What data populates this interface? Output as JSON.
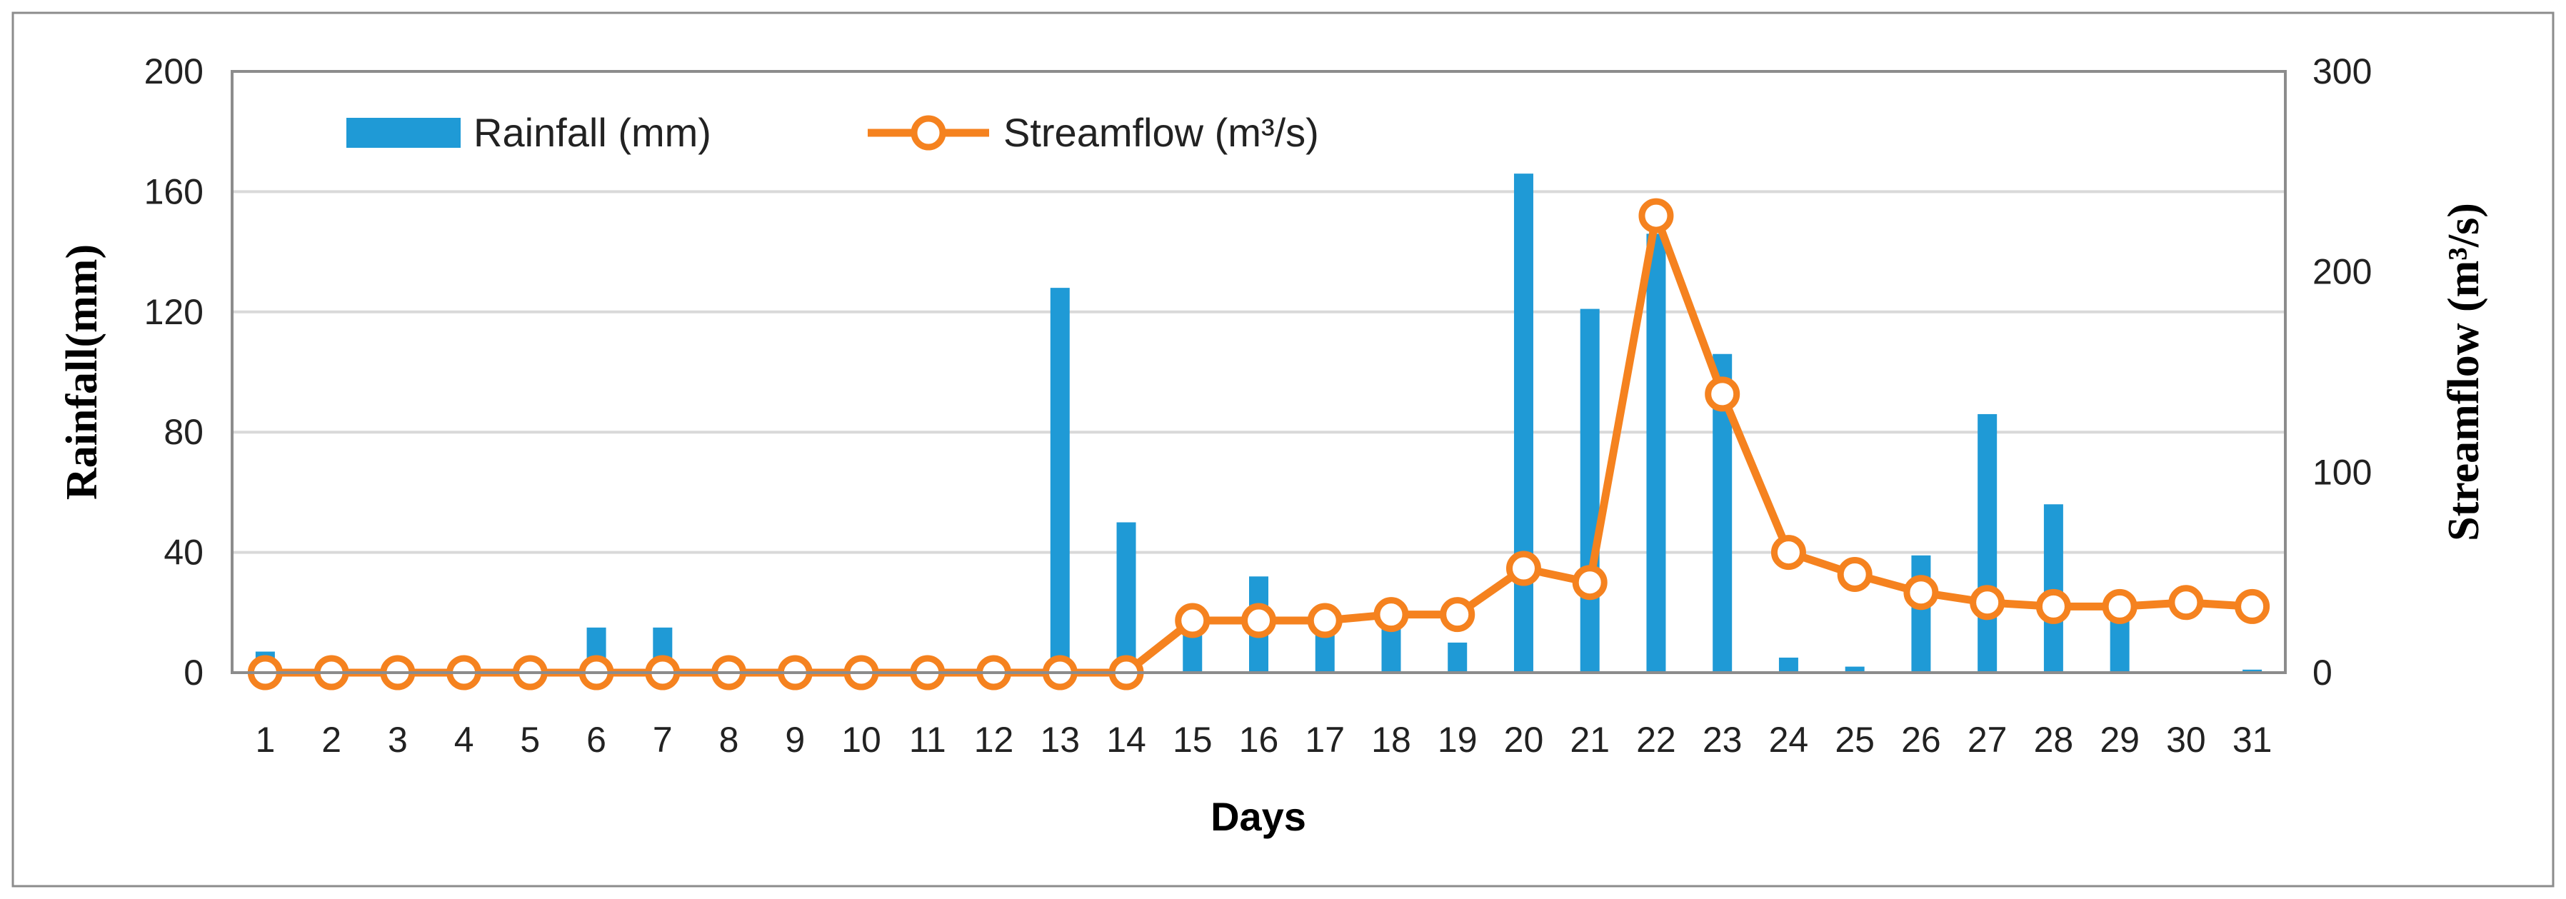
{
  "chart_data": {
    "type": "bar+line",
    "categories": [
      "1",
      "2",
      "3",
      "4",
      "5",
      "6",
      "7",
      "8",
      "9",
      "10",
      "11",
      "12",
      "13",
      "14",
      "15",
      "16",
      "17",
      "18",
      "19",
      "20",
      "21",
      "22",
      "23",
      "24",
      "25",
      "26",
      "27",
      "28",
      "29",
      "30",
      "31"
    ],
    "series": [
      {
        "name": "Rainfall (mm)",
        "type": "bar",
        "axis": "left",
        "values": [
          7,
          0,
          0,
          0,
          0,
          15,
          15,
          0,
          0,
          0,
          0,
          0,
          128,
          50,
          15,
          32,
          15,
          15,
          10,
          166,
          121,
          146,
          106,
          5,
          2,
          39,
          86,
          56,
          20,
          0,
          1
        ]
      },
      {
        "name": "Streamflow (m³/s)",
        "type": "line",
        "axis": "right",
        "values": [
          0,
          0,
          0,
          0,
          0,
          0,
          0,
          0,
          0,
          0,
          0,
          0,
          0,
          0,
          26,
          26,
          26,
          29,
          29,
          52,
          45,
          228,
          139,
          60,
          49,
          40,
          35,
          33,
          33,
          35,
          33
        ]
      }
    ],
    "xlabel": "Days",
    "ylabel_left": "Rainfall(mm)",
    "ylabel_right": "Streamflow (m³/s)",
    "ylim_left": [
      0,
      200
    ],
    "ylim_right": [
      0,
      300
    ],
    "yticks_left": [
      0,
      40,
      80,
      120,
      160,
      200
    ],
    "yticks_right": [
      0,
      100,
      200,
      300
    ],
    "grid": true,
    "legend_position": "top-left",
    "colors": {
      "bar": "#1f9ad6",
      "line": "#f5821f",
      "marker_fill": "#ffffff",
      "grid": "#d9d9d9",
      "axis": "#8c8c8c"
    }
  }
}
